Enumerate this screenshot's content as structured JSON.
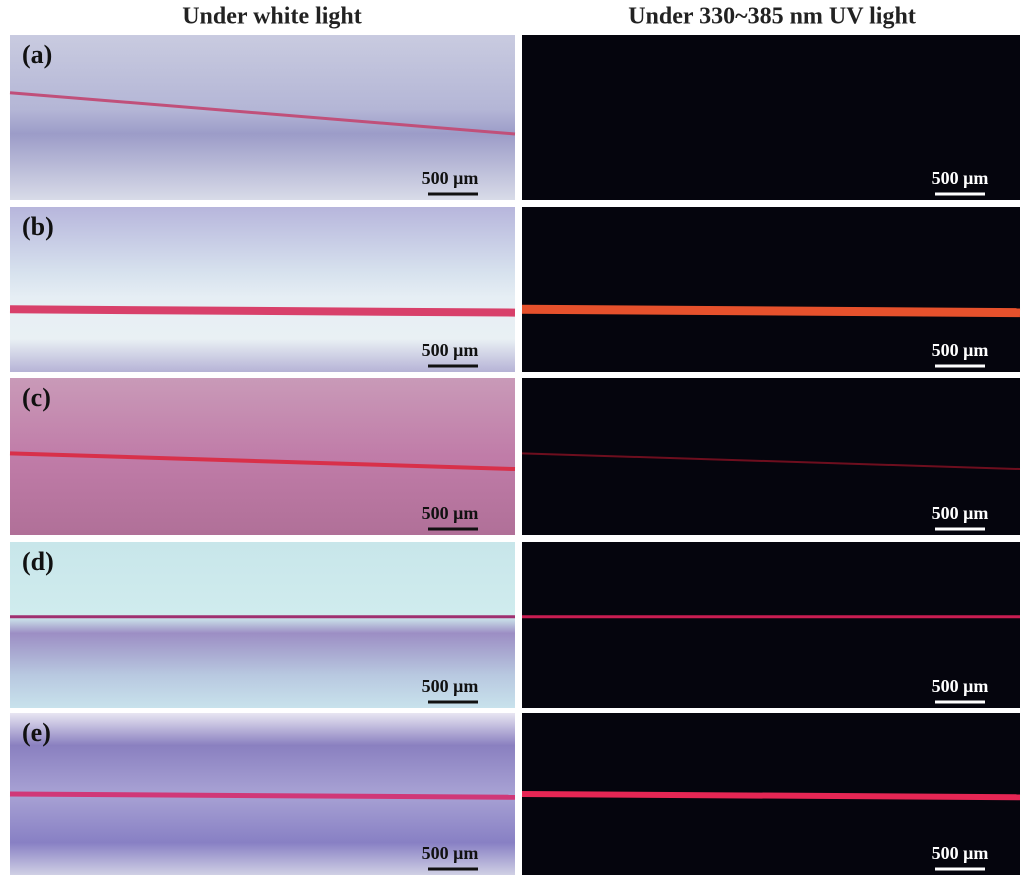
{
  "header": {
    "columns": [
      "Under white light",
      "Under 330~385 nm UV light"
    ]
  },
  "panels": [
    {
      "label": "(a)",
      "scale_white": "500 μm",
      "scale_uv": "500 μm"
    },
    {
      "label": "(b)",
      "scale_white": "500 μm",
      "scale_uv": "500 μm"
    },
    {
      "label": "(c)",
      "scale_white": "500 μm",
      "scale_uv": "500 μm"
    },
    {
      "label": "(d)",
      "scale_white": "500 μm",
      "scale_uv": "500 μm"
    },
    {
      "label": "(e)",
      "scale_white": "500 μm",
      "scale_uv": "500 μm"
    }
  ]
}
